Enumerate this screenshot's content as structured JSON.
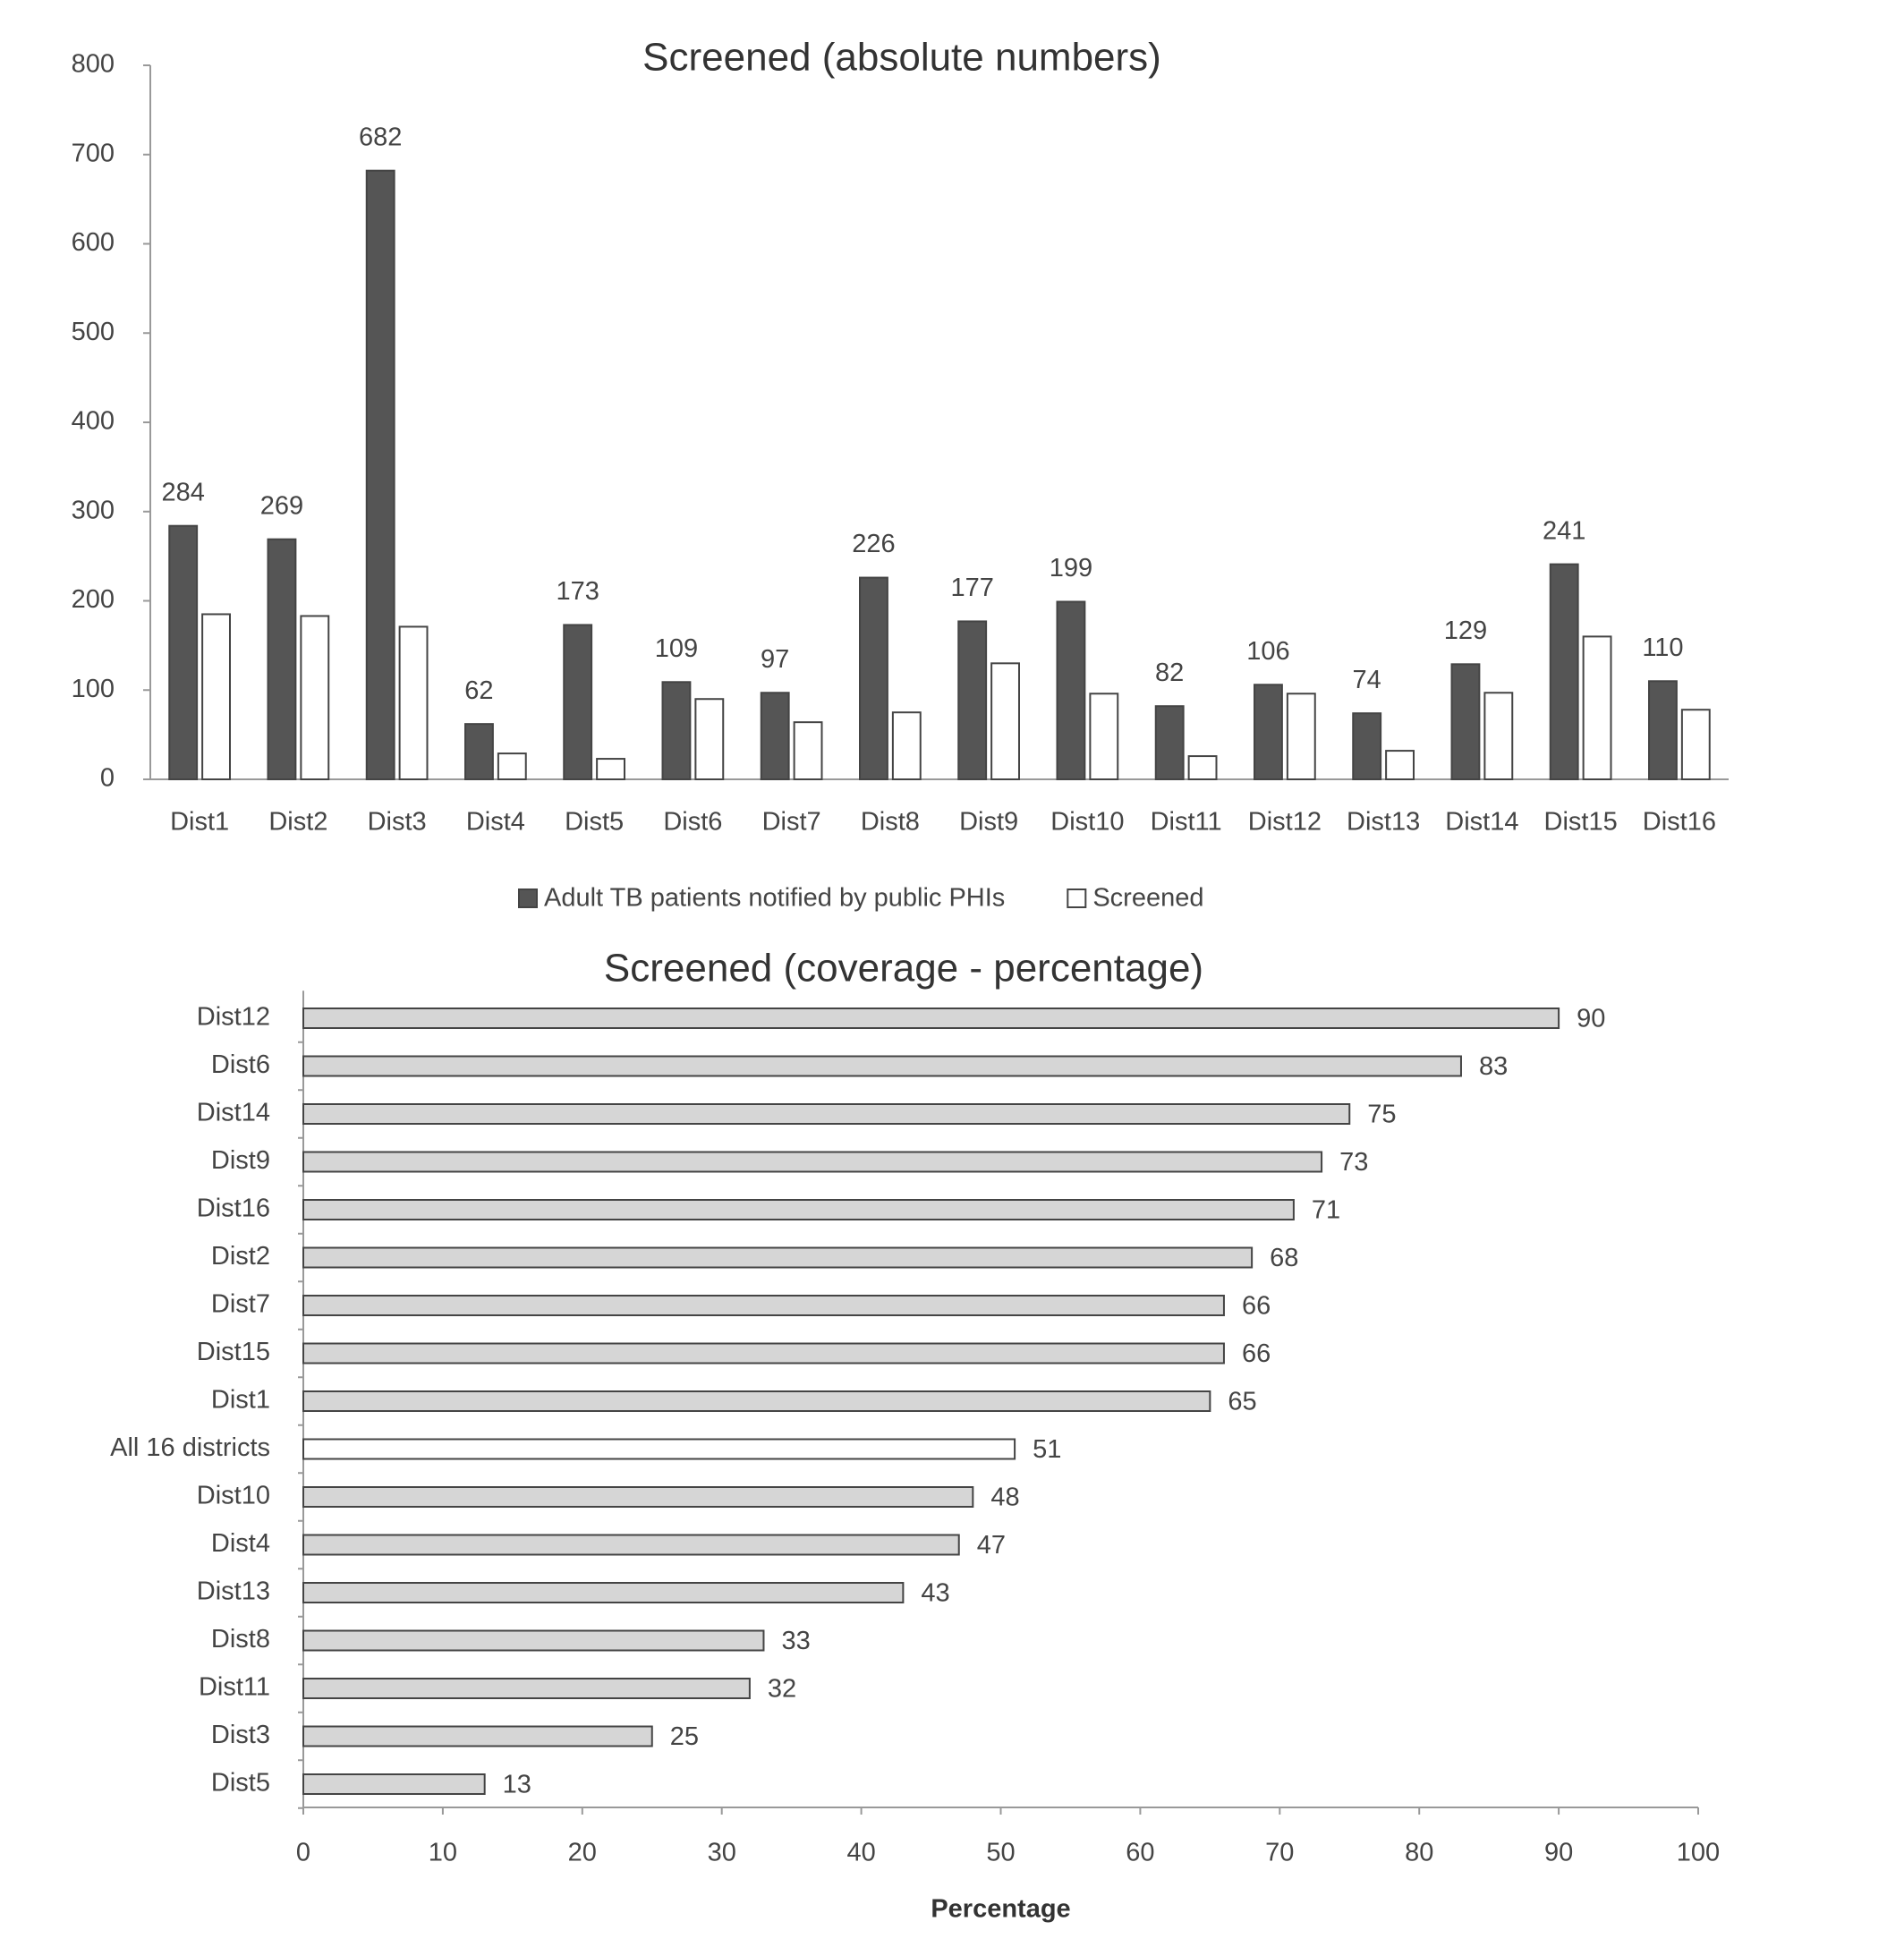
{
  "chart_data": [
    {
      "type": "bar",
      "title": "Screened (absolute numbers)",
      "categories": [
        "Dist1",
        "Dist2",
        "Dist3",
        "Dist4",
        "Dist5",
        "Dist6",
        "Dist7",
        "Dist8",
        "Dist9",
        "Dist10",
        "Dist11",
        "Dist12",
        "Dist13",
        "Dist14",
        "Dist15",
        "Dist16"
      ],
      "series": [
        {
          "name": "Adult TB patients notified by public PHIs",
          "color": "#555555",
          "labels": true,
          "values": [
            284,
            269,
            682,
            62,
            173,
            109,
            97,
            226,
            177,
            199,
            82,
            106,
            74,
            129,
            241,
            110
          ]
        },
        {
          "name": "Screened",
          "color": "#ffffff",
          "labels": false,
          "values": [
            185,
            183,
            171,
            29,
            23,
            90,
            64,
            75,
            130,
            96,
            26,
            96,
            32,
            97,
            160,
            78
          ]
        }
      ],
      "ylim": [
        0,
        800
      ],
      "yticks": [
        0,
        100,
        200,
        300,
        400,
        500,
        600,
        700,
        800
      ],
      "grid": false,
      "legend": "bottom"
    },
    {
      "type": "horizontal_bar",
      "title": "Screened (coverage - percentage)",
      "categories": [
        "Dist12",
        "Dist6",
        "Dist14",
        "Dist9",
        "Dist16",
        "Dist2",
        "Dist7",
        "Dist15",
        "Dist1",
        "All 16 districts",
        "Dist10",
        "Dist4",
        "Dist13",
        "Dist8",
        "Dist11",
        "Dist3",
        "Dist5"
      ],
      "values": [
        90,
        83,
        75,
        73,
        71,
        68,
        66,
        66,
        65,
        51,
        48,
        47,
        43,
        33,
        32,
        25,
        13
      ],
      "colors": [
        "#d6d6d6",
        "#d6d6d6",
        "#d6d6d6",
        "#d6d6d6",
        "#d6d6d6",
        "#d6d6d6",
        "#d6d6d6",
        "#d6d6d6",
        "#d6d6d6",
        "#ffffff",
        "#d6d6d6",
        "#d6d6d6",
        "#d6d6d6",
        "#d6d6d6",
        "#d6d6d6",
        "#d6d6d6",
        "#d6d6d6"
      ],
      "xlabel": "Percentage",
      "xlim": [
        0,
        100
      ],
      "xticks": [
        0,
        10,
        20,
        30,
        40,
        50,
        60,
        70,
        80,
        90,
        100
      ],
      "grid": false
    }
  ]
}
